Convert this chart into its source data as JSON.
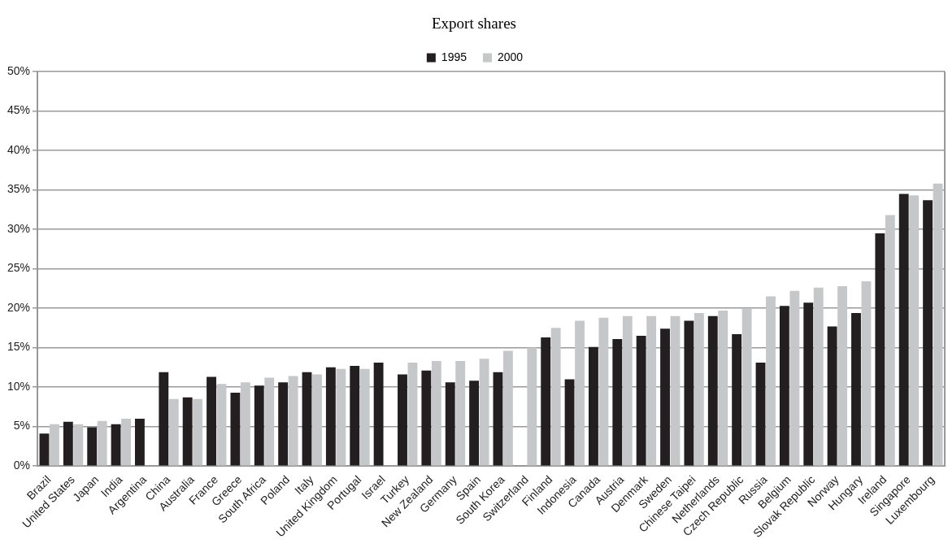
{
  "chart_data": {
    "type": "bar",
    "title": "Export shares",
    "categories": [
      "Brazil",
      "United States",
      "Japan",
      "India",
      "Argentina",
      "China",
      "Australia",
      "France",
      "Greece",
      "South Africa",
      "Poland",
      "Italy",
      "United Kingdom",
      "Portugal",
      "Israel",
      "Turkey",
      "New Zealand",
      "Germany",
      "Spain",
      "South Korea",
      "Switzerland",
      "Finland",
      "Indonesia",
      "Canada",
      "Austria",
      "Denmark",
      "Sweden",
      "Chinese Taipei",
      "Netherlands",
      "Czech Republic",
      "Russia",
      "Belgium",
      "Slovak Republic",
      "Norway",
      "Hungary",
      "Ireland",
      "Singapore",
      "Luxembourg"
    ],
    "series": [
      {
        "name": "1995",
        "color": "#231f20",
        "values": [
          4.1,
          5.6,
          4.9,
          5.3,
          6.0,
          11.9,
          8.7,
          11.3,
          9.3,
          10.2,
          10.6,
          11.9,
          12.5,
          12.7,
          13.1,
          11.6,
          12.1,
          10.6,
          10.8,
          11.9,
          null,
          16.3,
          11.0,
          15.1,
          16.1,
          16.5,
          17.4,
          18.4,
          19.0,
          16.7,
          13.1,
          20.3,
          20.7,
          17.7,
          19.4,
          29.5,
          34.5,
          33.7
        ]
      },
      {
        "name": "2000",
        "color": "#c6c7c9",
        "values": [
          5.3,
          5.3,
          5.7,
          6.0,
          null,
          8.5,
          8.5,
          10.4,
          10.6,
          11.2,
          11.4,
          11.6,
          12.3,
          12.3,
          null,
          13.1,
          13.3,
          13.3,
          13.6,
          14.6,
          15.0,
          17.5,
          18.4,
          18.8,
          19.0,
          19.0,
          19.0,
          19.4,
          19.7,
          20.0,
          21.5,
          22.2,
          22.6,
          22.8,
          23.4,
          31.8,
          34.3,
          35.8
        ]
      }
    ],
    "ylim": [
      0,
      50
    ],
    "yticks": [
      {
        "value": 0,
        "label": "0%"
      },
      {
        "value": 5,
        "label": "5%"
      },
      {
        "value": 10,
        "label": "10%"
      },
      {
        "value": 15,
        "label": "15%"
      },
      {
        "value": 20,
        "label": "20%"
      },
      {
        "value": 25,
        "label": "25%"
      },
      {
        "value": 30,
        "label": "30%"
      },
      {
        "value": 35,
        "label": "35%"
      },
      {
        "value": 40,
        "label": "40%"
      },
      {
        "value": 45,
        "label": "45%"
      },
      {
        "value": 50,
        "label": "50%"
      }
    ],
    "grid": "y",
    "legend": "top"
  }
}
